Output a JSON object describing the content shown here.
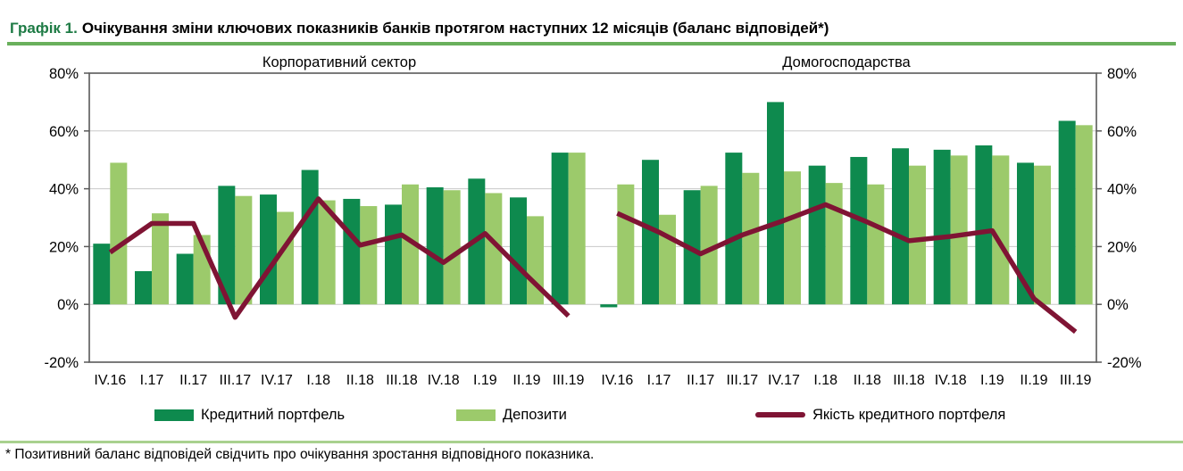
{
  "header": {
    "title_prefix": "Графік 1.",
    "title_rest": "Очікування зміни ключових показників банків протягом наступних 12 місяців (баланс відповідей*)"
  },
  "footnote": "* Позитивний баланс відповідей свідчить про очікування зростання відповідного показника.",
  "colors": {
    "credit": "#0E8A4E",
    "deposits": "#9CCA6B",
    "quality": "#7F1434",
    "title_green": "#1E7B45",
    "underline_green": "#69B05C",
    "separator_green": "#A9D18E",
    "axis": "#595959",
    "grid": "#C8C8C8"
  },
  "legend": [
    {
      "label": "Кредитний портфель",
      "type": "bar",
      "color_key": "credit"
    },
    {
      "label": "Депозити",
      "type": "bar",
      "color_key": "deposits"
    },
    {
      "label": "Якість кредитного портфеля",
      "type": "line",
      "color_key": "quality"
    }
  ],
  "chart_data": {
    "type": "bar+line",
    "ylim": [
      -20,
      80
    ],
    "yticks": [
      80,
      60,
      40,
      20,
      0,
      -20
    ],
    "ytick_suffix": "%",
    "grid": true,
    "legend_position": "bottom",
    "categories": [
      "IV.16",
      "I.17",
      "II.17",
      "III.17",
      "IV.17",
      "I.18",
      "II.18",
      "III.18",
      "IV.18",
      "I.19",
      "II.19",
      "III.19"
    ],
    "panels": [
      {
        "title": "Корпоративний сектор",
        "series": [
          {
            "name": "Кредитний портфель",
            "type": "bar",
            "color_key": "credit",
            "values": [
              21,
              11.5,
              17.5,
              41,
              38,
              46.5,
              36.5,
              34.5,
              40.5,
              43.5,
              37,
              52.5
            ]
          },
          {
            "name": "Депозити",
            "type": "bar",
            "color_key": "deposits",
            "values": [
              49,
              31.5,
              24,
              37.5,
              32,
              36,
              34,
              41.5,
              39.5,
              38.5,
              30.5,
              52.5
            ]
          },
          {
            "name": "Якість кредитного портфеля",
            "type": "line",
            "color_key": "quality",
            "values": [
              18,
              28,
              28,
              -4.5,
              16,
              36.5,
              20.5,
              24,
              14.5,
              24.5,
              10,
              -4
            ]
          }
        ]
      },
      {
        "title": "Домогосподарства",
        "series": [
          {
            "name": "Кредитний портфель",
            "type": "bar",
            "color_key": "credit",
            "values": [
              -1,
              50,
              39.5,
              52.5,
              70,
              48,
              51,
              54,
              53.5,
              55,
              49,
              63.5
            ]
          },
          {
            "name": "Депозити",
            "type": "bar",
            "color_key": "deposits",
            "values": [
              41.5,
              31,
              41,
              45.5,
              46,
              42,
              41.5,
              48,
              51.5,
              51.5,
              48,
              62
            ]
          },
          {
            "name": "Якість кредитного портфеля",
            "type": "line",
            "color_key": "quality",
            "values": [
              31.5,
              25,
              17.5,
              24,
              29,
              34.5,
              28.5,
              22,
              23.5,
              25.5,
              2,
              -9.5
            ]
          }
        ]
      }
    ]
  }
}
